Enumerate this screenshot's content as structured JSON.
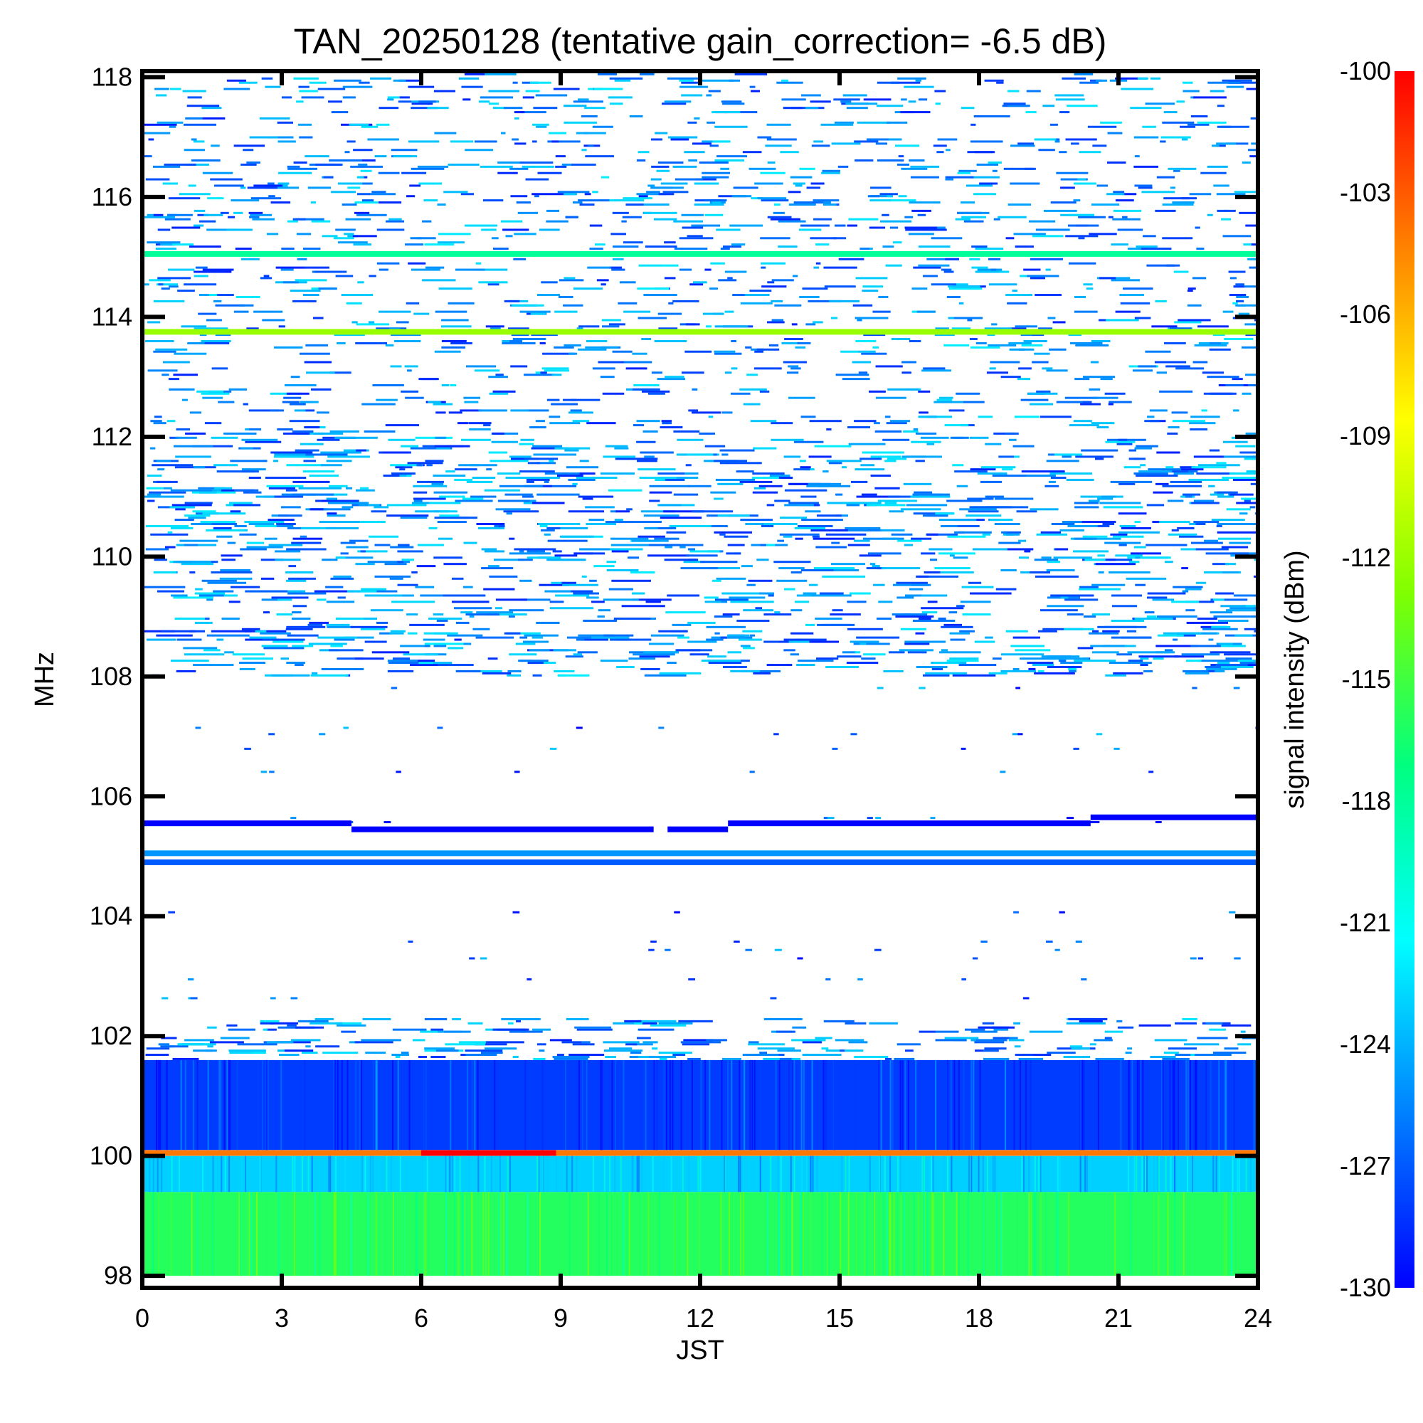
{
  "chart_data": {
    "type": "heatmap",
    "title": "TAN_20250128 (tentative gain_correction= -6.5 dB)",
    "xlabel": "JST",
    "ylabel": "MHz",
    "xlim": [
      0,
      24
    ],
    "ylim": [
      97.8,
      118.1
    ],
    "xticks": [
      0,
      3,
      6,
      9,
      12,
      15,
      18,
      21,
      24
    ],
    "xtick_labels": [
      "0",
      "3",
      "6",
      "9",
      "12",
      "15",
      "18",
      "21",
      "24"
    ],
    "yticks": [
      98,
      100,
      102,
      104,
      106,
      108,
      110,
      112,
      114,
      116,
      118
    ],
    "ytick_labels": [
      "98",
      "100",
      "102",
      "104",
      "106",
      "108",
      "110",
      "112",
      "114",
      "116",
      "118"
    ],
    "colorbar": {
      "label": "signal intensity (dBm)",
      "range": [
        -130,
        -100
      ],
      "ticks": [
        -100,
        -103,
        -106,
        -109,
        -112,
        -115,
        -118,
        -121,
        -124,
        -127,
        -130
      ],
      "tick_labels": [
        "-100",
        "-103",
        "-106",
        "-109",
        "-112",
        "-115",
        "-118",
        "-121",
        "-124",
        "-127",
        "-130"
      ],
      "colors": [
        "#0000ff",
        "#0080ff",
        "#00ffff",
        "#00ff80",
        "#80ff00",
        "#ffff00",
        "#ff8000",
        "#ff0000"
      ]
    },
    "features": [
      {
        "kind": "band",
        "freq": [
          98.0,
          99.4
        ],
        "intensity": -116
      },
      {
        "kind": "band",
        "freq": [
          99.4,
          100.0
        ],
        "intensity": -123
      },
      {
        "kind": "line",
        "freq": 100.05,
        "intensity": -104,
        "time": [
          0,
          24
        ]
      },
      {
        "kind": "line",
        "freq": 100.05,
        "intensity": -100,
        "time": [
          6,
          8.9
        ]
      },
      {
        "kind": "band",
        "freq": [
          100.1,
          101.6
        ],
        "intensity": -128
      },
      {
        "kind": "noise_band",
        "freq": [
          101.6,
          102.3
        ],
        "intensity": -129,
        "density": 0.55
      },
      {
        "kind": "noise_band",
        "freq": [
          102.3,
          108.0
        ],
        "intensity": -130,
        "density": 0.04
      },
      {
        "kind": "line",
        "freq": 104.9,
        "intensity": -127,
        "time": [
          0,
          24
        ]
      },
      {
        "kind": "line",
        "freq": 105.05,
        "intensity": -125,
        "time": [
          0,
          24
        ]
      },
      {
        "kind": "line",
        "freq": 105.55,
        "intensity": -130,
        "time": [
          0,
          4.5
        ]
      },
      {
        "kind": "line",
        "freq": 105.45,
        "intensity": -130,
        "time": [
          4.5,
          11
        ]
      },
      {
        "kind": "line",
        "freq": 105.45,
        "intensity": -130,
        "time": [
          11.3,
          12.6
        ]
      },
      {
        "kind": "line",
        "freq": 105.55,
        "intensity": -130,
        "time": [
          12.6,
          20.4
        ]
      },
      {
        "kind": "line",
        "freq": 105.65,
        "intensity": -130,
        "time": [
          20.4,
          24
        ]
      },
      {
        "kind": "noise_band",
        "freq": [
          108.0,
          112.0
        ],
        "intensity": -129,
        "density": 0.6
      },
      {
        "kind": "noise_band",
        "freq": [
          112.0,
          118.1
        ],
        "intensity": -129,
        "density": 0.45
      },
      {
        "kind": "line",
        "freq": 113.75,
        "intensity": -112,
        "time": [
          0,
          24
        ]
      },
      {
        "kind": "line",
        "freq": 115.05,
        "intensity": -118,
        "time": [
          0,
          24
        ]
      }
    ]
  }
}
